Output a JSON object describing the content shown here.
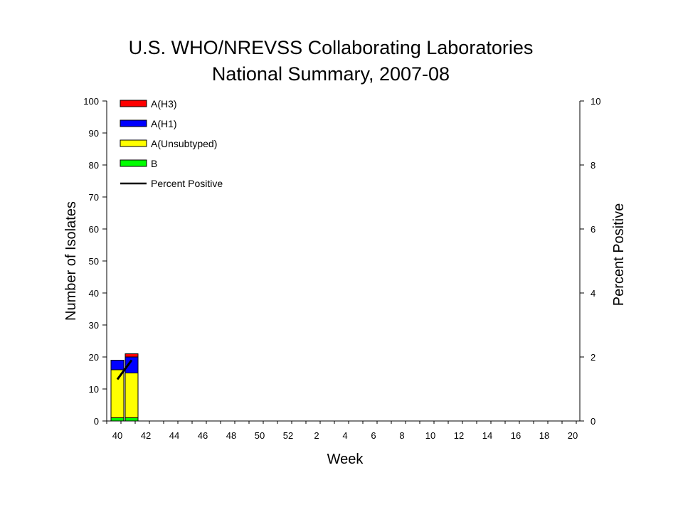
{
  "chart_data": {
    "type": "bar",
    "title": "U.S. WHO/NREVSS Collaborating Laboratories",
    "subtitle": "National Summary, 2007-08",
    "xlabel": "Week",
    "ylabel": "Number of Isolates",
    "y2label": "Percent Positive",
    "ylim": [
      0,
      100
    ],
    "y2lim": [
      0,
      10
    ],
    "yticks": [
      0,
      10,
      20,
      30,
      40,
      50,
      60,
      70,
      80,
      90,
      100
    ],
    "y2ticks": [
      0,
      2,
      4,
      6,
      8,
      10
    ],
    "x_tick_labels": [
      "40",
      "42",
      "44",
      "46",
      "48",
      "50",
      "52",
      "2",
      "4",
      "6",
      "8",
      "10",
      "12",
      "14",
      "16",
      "18",
      "20"
    ],
    "weeks": [
      "40",
      "41"
    ],
    "stacked": true,
    "legend_position": "top-left",
    "grid": false,
    "series": [
      {
        "name": "B",
        "color": "#00ff00",
        "values": [
          1,
          1
        ]
      },
      {
        "name": "A(Unsubtyped)",
        "color": "#ffff00",
        "values": [
          15,
          14
        ]
      },
      {
        "name": "A(H1)",
        "color": "#0000ff",
        "values": [
          3,
          5
        ]
      },
      {
        "name": "A(H3)",
        "color": "#ff0000",
        "values": [
          0,
          1
        ]
      }
    ],
    "line_series": {
      "name": "Percent Positive",
      "axis": "right",
      "color": "#000000",
      "values": [
        1.3,
        1.9
      ]
    }
  }
}
